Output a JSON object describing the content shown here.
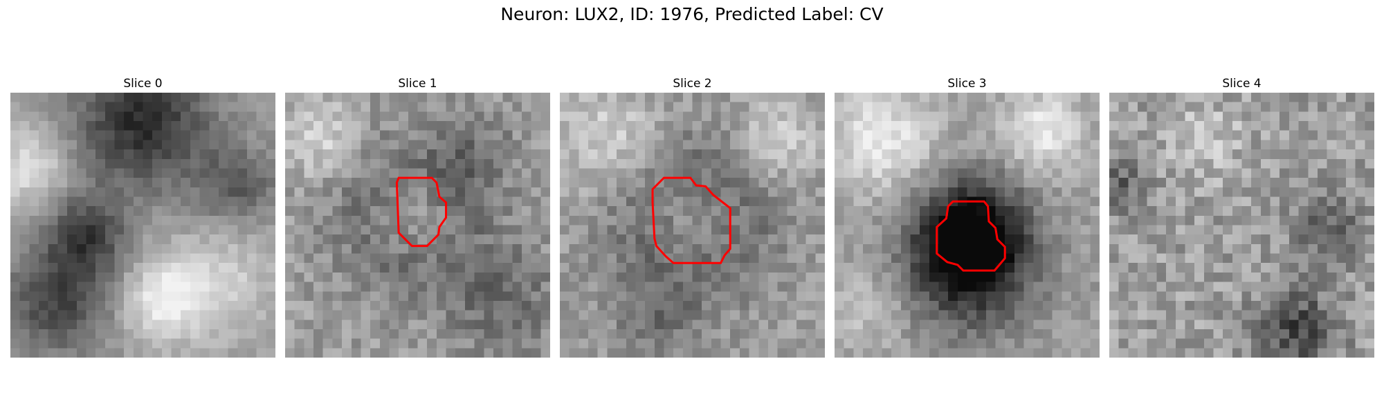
{
  "figure": {
    "title": "Neuron: LUX2, ID: 1976, Predicted Label: CV",
    "grid_size": 28,
    "contour_color": "#ff0000",
    "slices": [
      {
        "label": "Slice 0",
        "has_contour": false
      },
      {
        "label": "Slice 1",
        "has_contour": true
      },
      {
        "label": "Slice 2",
        "has_contour": true
      },
      {
        "label": "Slice 3",
        "has_contour": true
      },
      {
        "label": "Slice 4",
        "has_contour": false
      }
    ]
  }
}
